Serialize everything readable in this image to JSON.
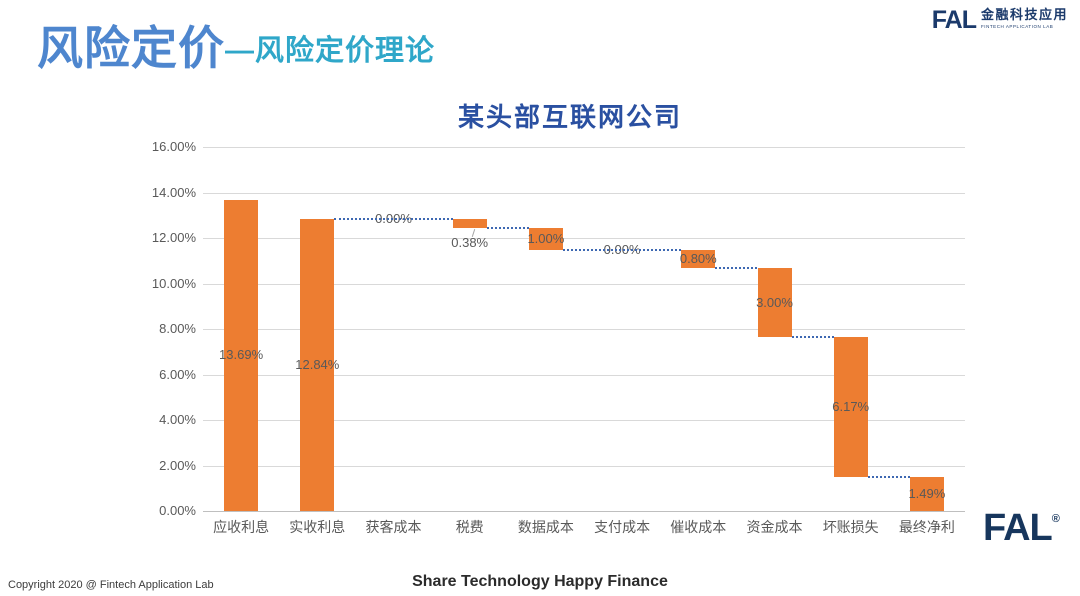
{
  "header": {
    "title": "风险定价",
    "subtitle": "—风险定价理论"
  },
  "brand_top": {
    "name": "FAL",
    "cn": "金融科技应用",
    "en": "FINTECH APPLICATION LAB"
  },
  "brand_bottom": {
    "name": "FAL",
    "reg": "®"
  },
  "footer": {
    "copyright": "Copyright 2020 @ Fintech Application Lab",
    "slogan": "Share Technology Happy Finance"
  },
  "chart_data": {
    "type": "bar",
    "subtype": "waterfall",
    "title": "某头部互联网公司",
    "categories": [
      "应收利息",
      "实收利息",
      "获客成本",
      "税费",
      "数据成本",
      "支付成本",
      "催收成本",
      "资金成本",
      "坏账损失",
      "最终净利"
    ],
    "values": [
      13.69,
      12.84,
      0.0,
      0.38,
      1.0,
      0.0,
      0.8,
      3.0,
      6.17,
      1.49
    ],
    "segments": [
      {
        "category": "应收利息",
        "start": 0,
        "end": 13.69,
        "label": "13.69%",
        "label_pos": "center"
      },
      {
        "category": "实收利息",
        "start": 0,
        "end": 12.84,
        "label": "12.84%",
        "label_pos": "center"
      },
      {
        "category": "获客成本",
        "start": 12.84,
        "end": 12.84,
        "label": "0.00%",
        "label_pos": "line"
      },
      {
        "category": "税费",
        "start": 12.84,
        "end": 12.46,
        "label": "0.38%",
        "label_pos": "below"
      },
      {
        "category": "数据成本",
        "start": 12.46,
        "end": 11.46,
        "label": "1.00%",
        "label_pos": "center"
      },
      {
        "category": "支付成本",
        "start": 11.46,
        "end": 11.46,
        "label": "0.00%",
        "label_pos": "line"
      },
      {
        "category": "催收成本",
        "start": 11.46,
        "end": 10.66,
        "label": "0.80%",
        "label_pos": "center"
      },
      {
        "category": "资金成本",
        "start": 10.66,
        "end": 7.66,
        "label": "3.00%",
        "label_pos": "center"
      },
      {
        "category": "坏账损失",
        "start": 7.66,
        "end": 1.49,
        "label": "6.17%",
        "label_pos": "center"
      },
      {
        "category": "最终净利",
        "start": 0,
        "end": 1.49,
        "label": "1.49%",
        "label_pos": "center"
      }
    ],
    "y_ticks": [
      "0.00%",
      "2.00%",
      "4.00%",
      "6.00%",
      "8.00%",
      "10.00%",
      "12.00%",
      "14.00%",
      "16.00%"
    ],
    "ylim": [
      0,
      16
    ],
    "ytick_step": 2,
    "grid": true,
    "legend": false,
    "colors": {
      "bar": "#ED7D31",
      "connector": "#3E68B2",
      "gridline": "#D9D9D9",
      "axis_line": "#BFBFBF",
      "tick_label": "#595959",
      "data_label": "#595959"
    }
  }
}
